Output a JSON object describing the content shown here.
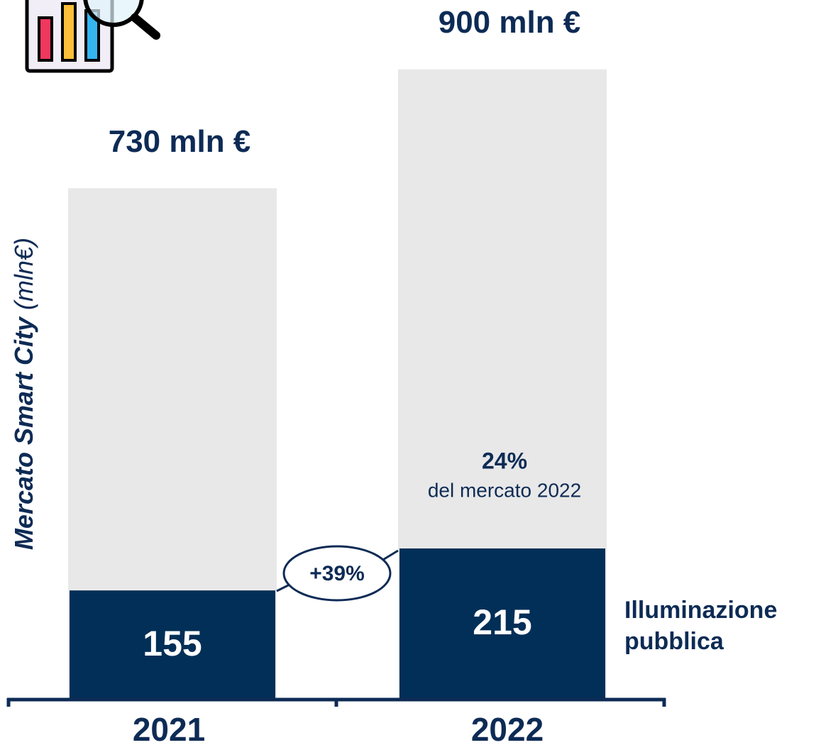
{
  "chart_data": {
    "type": "bar",
    "categories": [
      "2021",
      "2022"
    ],
    "totals": {
      "values": [
        730,
        900
      ],
      "value_labels": [
        "730 mln €",
        "900 mln €"
      ],
      "color": "#e8e8e8"
    },
    "series": [
      {
        "name": "Illuminazione pubblica",
        "color": "#012f57",
        "values": [
          155,
          215
        ]
      }
    ],
    "y_label": "Mercato Smart City",
    "y_label_unit": "(mln€)",
    "growth_annotation": "+39%",
    "share_annotation": "24%",
    "share_annotation_note": "del mercato 2022",
    "ylim": [
      0,
      1000
    ]
  }
}
